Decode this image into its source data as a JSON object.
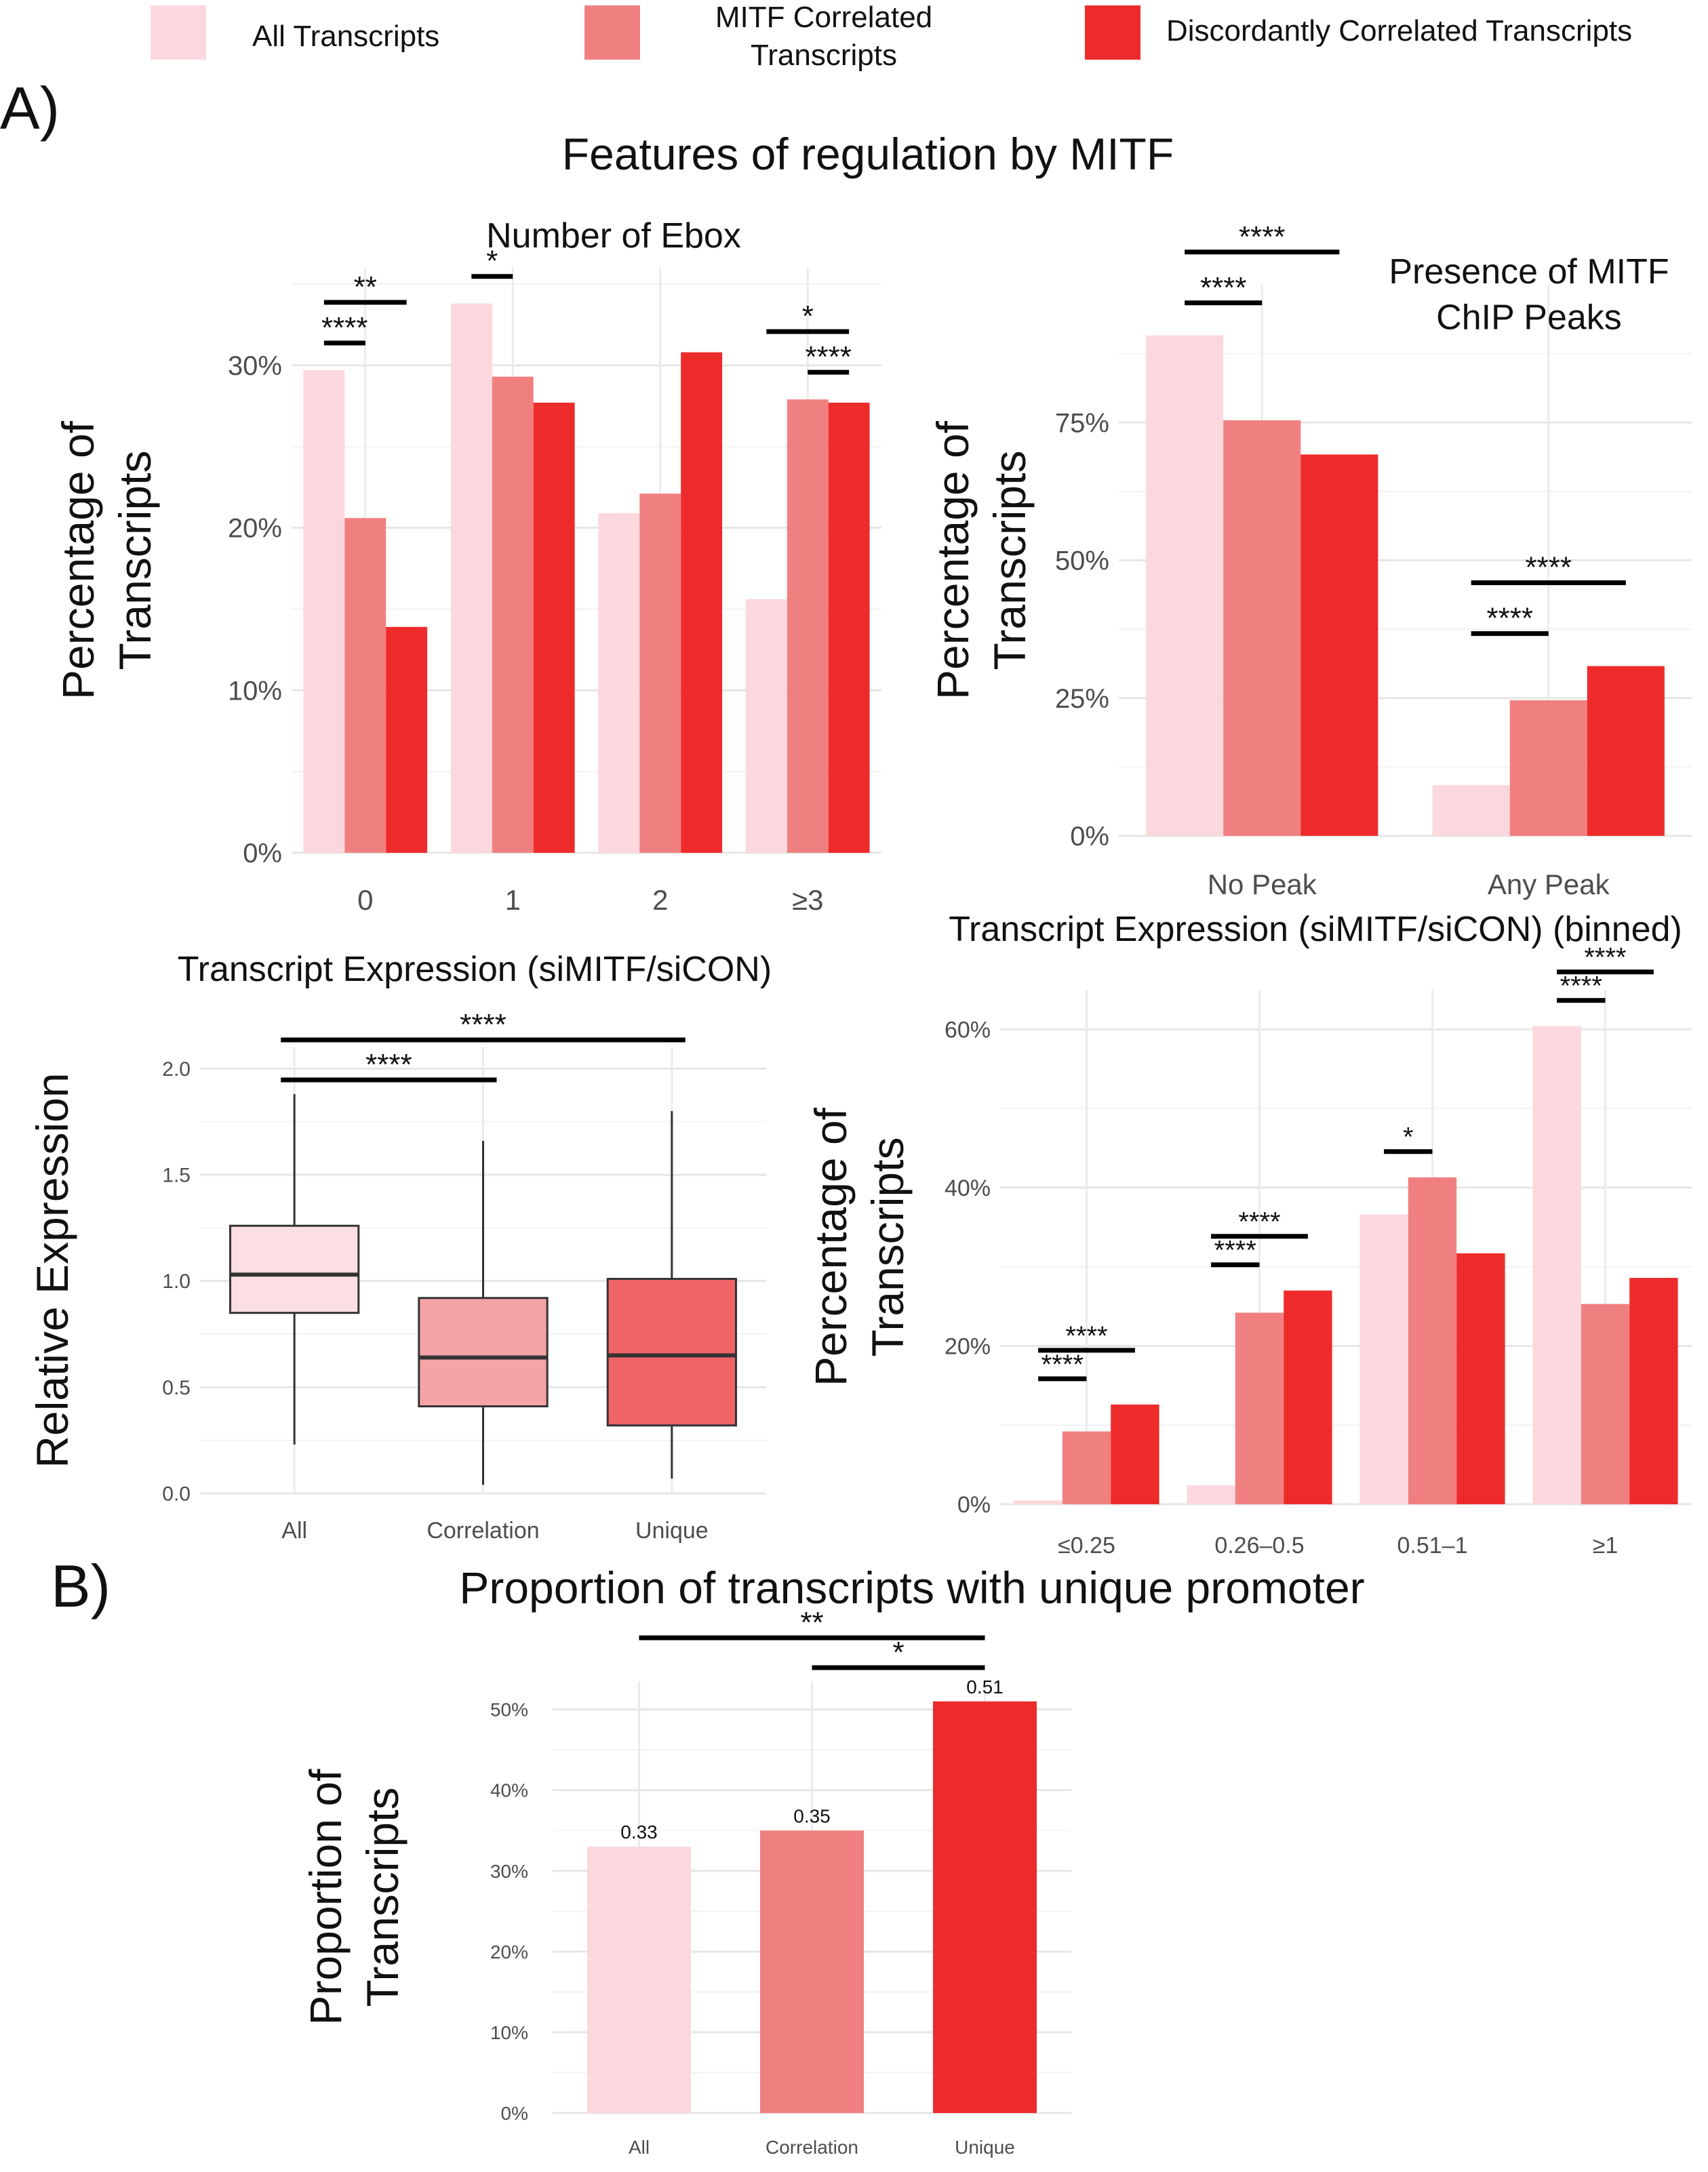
{
  "legend": {
    "position": "top",
    "entries": [
      {
        "label": "All Transcripts",
        "color": "#fbd8dd"
      },
      {
        "label": "MITF Correlated Transcripts",
        "label_lines": [
          "MITF Correlated",
          "Transcripts"
        ],
        "color": "#f08080"
      },
      {
        "label": "Discordantly Correlated Transcripts",
        "color": "#ee2b2b"
      }
    ]
  },
  "panels": {
    "a_label": "A)",
    "a_title": "Features of  regulation by MITF",
    "b_label": "B)",
    "b_title": "Proportion of  transcripts with unique promoter"
  },
  "chart_data": [
    {
      "id": "ebox",
      "type": "bar",
      "title": "Number of Ebox",
      "xlabel": "",
      "ylabel": "Percentage of Transcripts",
      "ylabel_lines": [
        "Percentage of",
        "Transcripts"
      ],
      "categories": [
        "0",
        "1",
        "2",
        "≥3"
      ],
      "yticks": [
        "0%",
        "10%",
        "20%",
        "30%"
      ],
      "ylim": [
        0,
        36
      ],
      "grid": true,
      "series": [
        {
          "name": "All Transcripts",
          "color": "#fbd8dd",
          "values": [
            29.7,
            33.8,
            20.9,
            15.6
          ]
        },
        {
          "name": "MITF Correlated Transcripts",
          "color": "#f08080",
          "values": [
            20.6,
            29.3,
            22.1,
            27.9
          ]
        },
        {
          "name": "Discordantly Correlated Transcripts",
          "color": "#ee2b2b",
          "values": [
            13.9,
            27.7,
            30.8,
            27.7
          ]
        }
      ],
      "significance": [
        {
          "category": "0",
          "from": 0,
          "to": 1,
          "label": "****"
        },
        {
          "category": "0",
          "from": 0,
          "to": 2,
          "label": "**"
        },
        {
          "category": "1",
          "from": 0,
          "to": 1,
          "label": "*"
        },
        {
          "category": "≥3",
          "from": 1,
          "to": 2,
          "label": "****"
        },
        {
          "category": "≥3",
          "from": 0,
          "to": 2,
          "label": "*"
        }
      ]
    },
    {
      "id": "chip",
      "type": "bar",
      "title": "Presence of MITF ChIP Peaks",
      "title_lines": [
        "Presence of MITF",
        "ChIP Peaks"
      ],
      "xlabel": "",
      "ylabel": "Percentage of Transcripts",
      "ylabel_lines": [
        "Percentage of",
        "Transcripts"
      ],
      "categories": [
        "No Peak",
        "Any Peak"
      ],
      "yticks": [
        "0%",
        "25%",
        "50%",
        "75%"
      ],
      "ylim": [
        0,
        100
      ],
      "grid": true,
      "series": [
        {
          "name": "All Transcripts",
          "color": "#fbd8dd",
          "values": [
            90.8,
            9.2
          ]
        },
        {
          "name": "MITF Correlated Transcripts",
          "color": "#f08080",
          "values": [
            75.4,
            24.6
          ]
        },
        {
          "name": "Discordantly Correlated Transcripts",
          "color": "#ee2b2b",
          "values": [
            69.2,
            30.8
          ]
        }
      ],
      "significance": [
        {
          "category": "No Peak",
          "from": 0,
          "to": 1,
          "label": "****"
        },
        {
          "category": "No Peak",
          "from": 0,
          "to": 2,
          "label": "****"
        },
        {
          "category": "Any Peak",
          "from": 0,
          "to": 1,
          "label": "****"
        },
        {
          "category": "Any Peak",
          "from": 0,
          "to": 2,
          "label": "****"
        }
      ]
    },
    {
      "id": "boxplot",
      "type": "box",
      "title": "Transcript Expression (siMITF/siCON)",
      "xlabel": "",
      "ylabel": "Relative Expression",
      "categories": [
        "All",
        "Correlation",
        "Unique"
      ],
      "yticks": [
        "0.0",
        "0.5",
        "1.0",
        "1.5",
        "2.0"
      ],
      "ylim": [
        0,
        2.1
      ],
      "grid": true,
      "boxes": [
        {
          "name": "All",
          "color": "#fbdfe3",
          "whisker_low": 0.23,
          "q1": 0.85,
          "median": 1.03,
          "q3": 1.26,
          "whisker_high": 1.88
        },
        {
          "name": "Correlation",
          "color": "#f4a3a6",
          "whisker_low": 0.04,
          "q1": 0.41,
          "median": 0.64,
          "q3": 0.92,
          "whisker_high": 1.66
        },
        {
          "name": "Unique",
          "color": "#f06468",
          "whisker_low": 0.07,
          "q1": 0.32,
          "median": 0.65,
          "q3": 1.01,
          "whisker_high": 1.8
        }
      ],
      "significance": [
        {
          "from": "All",
          "to": "Correlation",
          "label": "****"
        },
        {
          "from": "All",
          "to": "Unique",
          "label": "****"
        }
      ]
    },
    {
      "id": "binned",
      "type": "bar",
      "title": "Transcript Expression (siMITF/siCON) (binned)",
      "xlabel": "",
      "ylabel": "Percentage of Transcripts",
      "ylabel_lines": [
        "Percentage of",
        "Transcripts"
      ],
      "categories": [
        "≤0.25",
        "0.26–0.5",
        "0.51–1",
        "≥1"
      ],
      "yticks": [
        "0%",
        "20%",
        "40%",
        "60%"
      ],
      "ylim": [
        0,
        65
      ],
      "grid": true,
      "series": [
        {
          "name": "All Transcripts",
          "color": "#fbd8dd",
          "values": [
            0.5,
            2.4,
            36.6,
            60.4
          ]
        },
        {
          "name": "MITF Correlated Transcripts",
          "color": "#f08080",
          "values": [
            9.2,
            24.2,
            41.3,
            25.3
          ]
        },
        {
          "name": "Discordantly Correlated Transcripts",
          "color": "#ee2b2b",
          "values": [
            12.6,
            27.0,
            31.7,
            28.6
          ]
        }
      ],
      "significance": [
        {
          "category": "≤0.25",
          "from": 0,
          "to": 1,
          "label": "****"
        },
        {
          "category": "≤0.25",
          "from": 0,
          "to": 2,
          "label": "****"
        },
        {
          "category": "0.26–0.5",
          "from": 0,
          "to": 1,
          "label": "****"
        },
        {
          "category": "0.26–0.5",
          "from": 0,
          "to": 2,
          "label": "****"
        },
        {
          "category": "0.51–1",
          "from": 0,
          "to": 1,
          "label": "*"
        },
        {
          "category": "≥1",
          "from": 0,
          "to": 1,
          "label": "****"
        },
        {
          "category": "≥1",
          "from": 0,
          "to": 2,
          "label": "****"
        }
      ]
    },
    {
      "id": "promoter",
      "type": "bar",
      "title": "",
      "xlabel": "",
      "ylabel": "Proportion of Transcripts",
      "ylabel_lines": [
        "Proportion of",
        "Transcripts"
      ],
      "categories": [
        "All",
        "Correlation",
        "Unique"
      ],
      "values": [
        0.33,
        0.35,
        0.51
      ],
      "data_labels": [
        "0.33",
        "0.35",
        "0.51"
      ],
      "colors": [
        "#fbd8dd",
        "#f08080",
        "#ee2b2b"
      ],
      "yticks": [
        "0%",
        "10%",
        "20%",
        "30%",
        "40%",
        "50%"
      ],
      "ylim": [
        0,
        0.535
      ],
      "grid": true,
      "significance": [
        {
          "from": "All",
          "to": "Unique",
          "label": "**"
        },
        {
          "from": "Correlation",
          "to": "Unique",
          "label": "*"
        }
      ]
    }
  ]
}
